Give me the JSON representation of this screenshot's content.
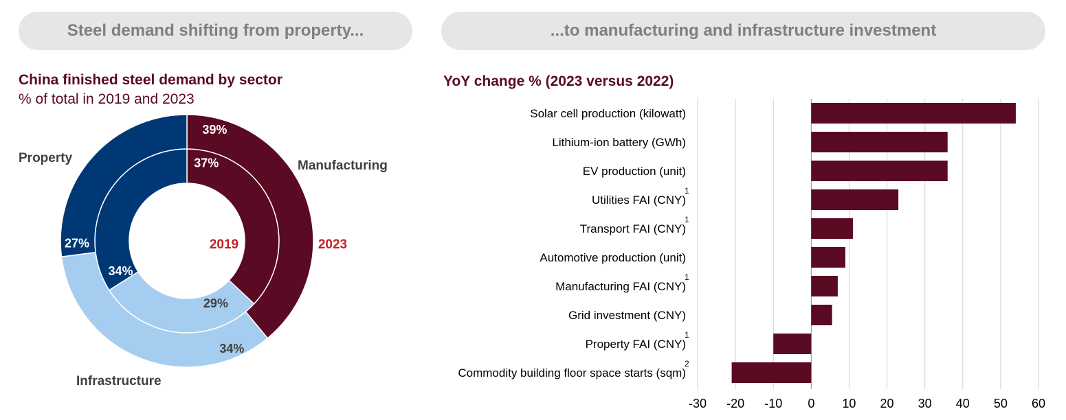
{
  "headers": {
    "left": "Steel demand shifting from property...",
    "right": "...to manufacturing and infrastructure investment"
  },
  "colors": {
    "manufacturing": "#5a0a22",
    "property": "#003876",
    "infrastructure": "#a5cdf0",
    "heading": "#5a0a22",
    "year_label": "#c0222b",
    "pill_bg": "#e6e6e6",
    "pill_text": "#7f7f7f",
    "bar": "#5a0a22"
  },
  "chart_data": [
    {
      "type": "pie",
      "subtype": "donut",
      "title": "China finished steel demand by sector",
      "subtitle": "% of total in 2019 and 2023",
      "rings": [
        {
          "year": "2019",
          "position": "inner",
          "slices": [
            {
              "name": "Manufacturing",
              "value": 37,
              "label": "37%"
            },
            {
              "name": "Infrastructure",
              "value": 29,
              "label": "29%"
            },
            {
              "name": "Property",
              "value": 34,
              "label": "34%"
            }
          ]
        },
        {
          "year": "2023",
          "position": "outer",
          "slices": [
            {
              "name": "Manufacturing",
              "value": 39,
              "label": "39%"
            },
            {
              "name": "Infrastructure",
              "value": 34,
              "label": "34%"
            },
            {
              "name": "Property",
              "value": 27,
              "label": "27%"
            }
          ]
        }
      ],
      "sector_labels": [
        "Manufacturing",
        "Infrastructure",
        "Property"
      ]
    },
    {
      "type": "bar",
      "orientation": "horizontal",
      "title": "YoY change % (2023 versus 2022)",
      "categories": [
        {
          "label": "Solar cell production (kilowatt)",
          "note": ""
        },
        {
          "label": "Lithium-ion battery (GWh)",
          "note": ""
        },
        {
          "label": "EV production (unit)",
          "note": ""
        },
        {
          "label": "Utilities FAI (CNY)",
          "note": "1"
        },
        {
          "label": "Transport FAI (CNY)",
          "note": "1"
        },
        {
          "label": "Automotive production (unit)",
          "note": ""
        },
        {
          "label": "Manufacturing FAI (CNY)",
          "note": "1"
        },
        {
          "label": "Grid investment (CNY)",
          "note": ""
        },
        {
          "label": "Property FAI (CNY)",
          "note": "1"
        },
        {
          "label": "Commodity building floor space starts (sqm)",
          "note": "2"
        }
      ],
      "values": [
        54,
        36,
        36,
        23,
        11,
        9,
        7,
        5.5,
        -10,
        -21
      ],
      "xlim": [
        -30,
        60
      ],
      "ticks": [
        "-30",
        "-20",
        "-10",
        "0",
        "10",
        "20",
        "30",
        "40",
        "50",
        "60"
      ],
      "grid": true
    }
  ]
}
